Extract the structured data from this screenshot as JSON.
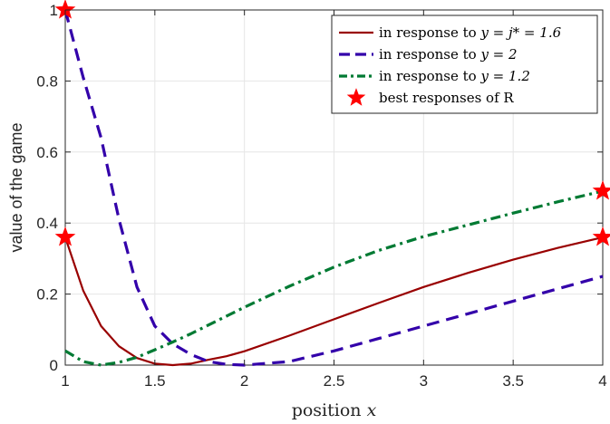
{
  "chart_data": {
    "type": "line",
    "xlabel": "position x",
    "ylabel": "value of the game",
    "xlim": [
      1,
      4
    ],
    "ylim": [
      0,
      1
    ],
    "xticks": [
      1,
      1.5,
      2,
      2.5,
      3,
      3.5,
      4
    ],
    "xtick_labels": [
      "1",
      "1.5",
      "2",
      "2.5",
      "3",
      "3.5",
      "4"
    ],
    "yticks": [
      0,
      0.2,
      0.4,
      0.6,
      0.8,
      1
    ],
    "ytick_labels": [
      "0",
      "0.2",
      "0.4",
      "0.6",
      "0.8",
      "1"
    ],
    "grid": true,
    "legend_position": "top-right",
    "series": [
      {
        "name": "in response to y = j* = 1.6",
        "color": "#990000",
        "style": "solid",
        "x": [
          1,
          1.1,
          1.2,
          1.3,
          1.4,
          1.5,
          1.6,
          1.7,
          1.8,
          1.9,
          2,
          2.25,
          2.5,
          2.75,
          3,
          3.25,
          3.5,
          3.75,
          4
        ],
        "y": [
          0.36,
          0.21,
          0.11,
          0.053,
          0.02,
          0.004,
          0,
          0.004,
          0.015,
          0.025,
          0.039,
          0.083,
          0.129,
          0.175,
          0.22,
          0.26,
          0.297,
          0.33,
          0.36
        ]
      },
      {
        "name": "in response to y = 2",
        "color": "#3300aa",
        "style": "dashed",
        "x": [
          1,
          1.1,
          1.2,
          1.3,
          1.4,
          1.5,
          1.6,
          1.7,
          1.8,
          1.9,
          2,
          2.25,
          2.5,
          2.75,
          3,
          3.25,
          3.5,
          3.75,
          4
        ],
        "y": [
          1,
          0.81,
          0.64,
          0.41,
          0.22,
          0.11,
          0.06,
          0.03,
          0.01,
          0.002,
          0,
          0.01,
          0.04,
          0.075,
          0.11,
          0.145,
          0.18,
          0.215,
          0.25
        ]
      },
      {
        "name": "in response to y = 1.2",
        "color": "#007a33",
        "style": "dashdot",
        "x": [
          1,
          1.1,
          1.2,
          1.3,
          1.4,
          1.5,
          1.6,
          1.7,
          1.8,
          1.9,
          2,
          2.25,
          2.5,
          2.75,
          3,
          3.25,
          3.5,
          3.75,
          4
        ],
        "y": [
          0.04,
          0.01,
          0,
          0.008,
          0.022,
          0.043,
          0.065,
          0.088,
          0.113,
          0.138,
          0.163,
          0.222,
          0.276,
          0.323,
          0.362,
          0.395,
          0.428,
          0.46,
          0.49
        ]
      }
    ],
    "markers": {
      "name": "best responses of R",
      "color": "#ff0000",
      "shape": "star",
      "points": [
        {
          "x": 1,
          "y": 1
        },
        {
          "x": 1,
          "y": 0.36
        },
        {
          "x": 4,
          "y": 0.49
        },
        {
          "x": 4,
          "y": 0.36
        }
      ]
    },
    "legend": {
      "entries": [
        {
          "prefix": "in response to ",
          "math": "y = j* = 1.6"
        },
        {
          "prefix": "in response to ",
          "math": "y = 2"
        },
        {
          "prefix": "in response to ",
          "math": "y = 1.2"
        },
        {
          "prefix": "",
          "math": "",
          "text": "best responses of R"
        }
      ]
    }
  }
}
